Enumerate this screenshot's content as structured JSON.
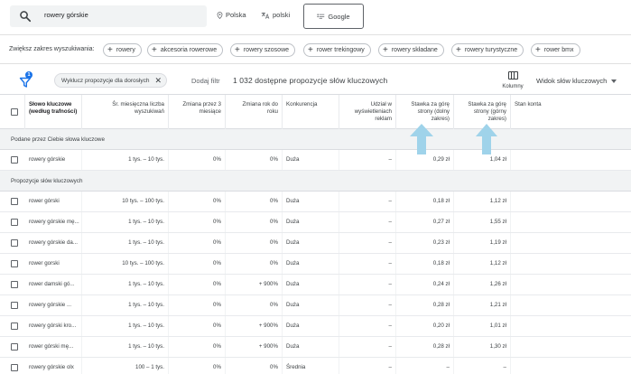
{
  "search": {
    "query": "rowery górskie"
  },
  "location": {
    "label": "Polska"
  },
  "language": {
    "label": "polski"
  },
  "network": {
    "label": "Google"
  },
  "broaden": {
    "label": "Zwiększ zakres wyszukiwania:",
    "chips": [
      "rowery",
      "akcesoria rowerowe",
      "rowery szosowe",
      "rower trekingowy",
      "rowery składane",
      "rowery turystyczne",
      "rower bmx"
    ]
  },
  "filters": {
    "badge": "1",
    "active_filter": "Wyklucz propozycje dla dorosłych",
    "add_filter": "Dodaj filtr",
    "count": "1 032 dostępne propozycje słów kluczowych",
    "columns_label": "Kolumny",
    "view_label": "Widok słów kluczowych"
  },
  "table": {
    "headers": {
      "keyword": "Słowo kluczowe (według trafności)",
      "avg_searches": "Śr. miesięczna liczba wyszukiwań",
      "change_3m": "Zmiana przez 3 miesiące",
      "change_yoy": "Zmiana rok do roku",
      "competition": "Konkurencja",
      "impression_share": "Udział w wyświetleniach reklam",
      "bid_low": "Stawka za górę strony (dolny zakres)",
      "bid_high": "Stawka za górę strony (górny zakres)",
      "account_status": "Stan konta"
    },
    "provided_section": "Podane przez Ciebie słowa kluczowe",
    "provided_rows": [
      {
        "keyword": "rowery górskie",
        "avg": "1 tys. – 10 tys.",
        "c3m": "0%",
        "yoy": "0%",
        "comp": "Duża",
        "share": "–",
        "low": "0,29 zł",
        "high": "1,04 zł"
      }
    ],
    "ideas_section": "Propozycje słów kluczowych",
    "idea_rows": [
      {
        "keyword": "rower górski",
        "avg": "10 tys. – 100 tys.",
        "c3m": "0%",
        "yoy": "0%",
        "comp": "Duża",
        "share": "–",
        "low": "0,18 zł",
        "high": "1,12 zł"
      },
      {
        "keyword": "rowery górskie mę...",
        "avg": "1 tys. – 10 tys.",
        "c3m": "0%",
        "yoy": "0%",
        "comp": "Duża",
        "share": "–",
        "low": "0,27 zł",
        "high": "1,55 zł"
      },
      {
        "keyword": "rowery górskie da...",
        "avg": "1 tys. – 10 tys.",
        "c3m": "0%",
        "yoy": "0%",
        "comp": "Duża",
        "share": "–",
        "low": "0,23 zł",
        "high": "1,19 zł"
      },
      {
        "keyword": "rower gorski",
        "avg": "10 tys. – 100 tys.",
        "c3m": "0%",
        "yoy": "0%",
        "comp": "Duża",
        "share": "–",
        "low": "0,18 zł",
        "high": "1,12 zł"
      },
      {
        "keyword": "rower damski gó...",
        "avg": "1 tys. – 10 tys.",
        "c3m": "0%",
        "yoy": "+ 900%",
        "comp": "Duża",
        "share": "–",
        "low": "0,24 zł",
        "high": "1,26 zł"
      },
      {
        "keyword": "rowery górskie ...",
        "avg": "1 tys. – 10 tys.",
        "c3m": "0%",
        "yoy": "0%",
        "comp": "Duża",
        "share": "–",
        "low": "0,28 zł",
        "high": "1,21 zł"
      },
      {
        "keyword": "rowery górski kro...",
        "avg": "1 tys. – 10 tys.",
        "c3m": "0%",
        "yoy": "+ 900%",
        "comp": "Duża",
        "share": "–",
        "low": "0,20 zł",
        "high": "1,01 zł"
      },
      {
        "keyword": "rower górski mę...",
        "avg": "1 tys. – 10 tys.",
        "c3m": "0%",
        "yoy": "+ 900%",
        "comp": "Duża",
        "share": "–",
        "low": "0,28 zł",
        "high": "1,30 zł"
      },
      {
        "keyword": "rowery górskie olx",
        "avg": "100 – 1 tys.",
        "c3m": "0%",
        "yoy": "0%",
        "comp": "Średnia",
        "share": "–",
        "low": "–",
        "high": "–"
      }
    ]
  },
  "annotation": {
    "arrow_color": "#9fd3ea"
  },
  "colors": {
    "accent": "#1a73e8",
    "section_bg": "#f1f3f4"
  }
}
